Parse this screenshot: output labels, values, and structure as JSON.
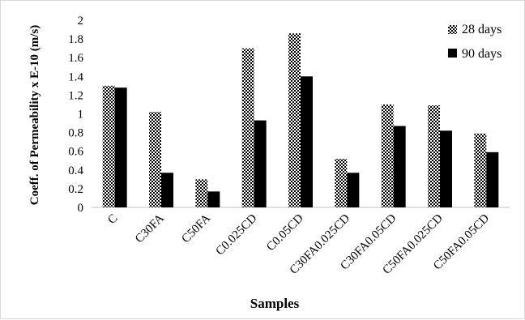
{
  "chart_data": {
    "type": "bar",
    "categories": [
      "C",
      "C30FA",
      "C50FA",
      "C0.025CD",
      "C0.05CD",
      "C30FA0.025CD",
      "C30FA0.05CD",
      "C50FA0.025CD",
      "C50FA0.05CD"
    ],
    "series": [
      {
        "name": "28 days",
        "values": [
          1.3,
          1.02,
          0.3,
          1.7,
          1.86,
          0.52,
          1.1,
          1.09,
          0.79
        ],
        "color": "#000000",
        "pattern": "checkerboard"
      },
      {
        "name": "90 days",
        "values": [
          1.28,
          0.37,
          0.17,
          0.93,
          1.4,
          0.37,
          0.87,
          0.82,
          0.59
        ],
        "color": "#000000",
        "pattern": "solid"
      }
    ],
    "title": "",
    "xlabel": "Samples",
    "ylabel": "Coeff. of Permeability x E-10 (m/s)",
    "ylim": [
      0,
      2
    ],
    "yticks": [
      "0",
      "0.2",
      "0.4",
      "0.6",
      "0.8",
      "1",
      "1.2",
      "1.4",
      "1.6",
      "1.8",
      "2"
    ],
    "grid": false,
    "legend_position": "top-right"
  }
}
